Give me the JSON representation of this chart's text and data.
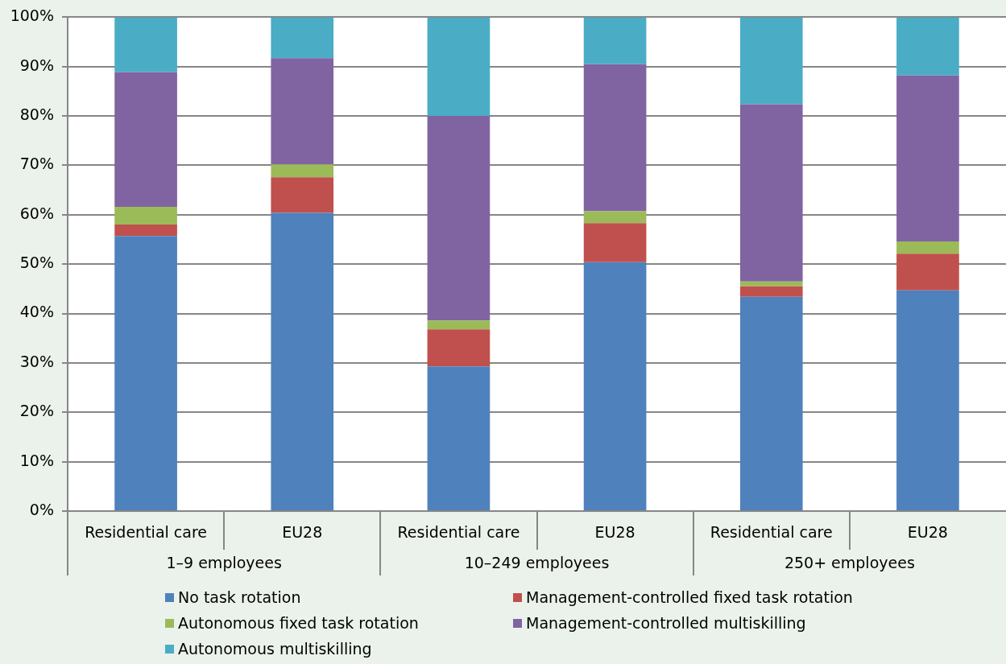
{
  "chart_data": {
    "type": "bar",
    "stacked": true,
    "categories": [
      "Residential care",
      "EU28",
      "Residential care",
      "EU28",
      "Residential care",
      "EU28"
    ],
    "annotations": [
      "1–9 employees",
      "10–249 employees",
      "250+ employees"
    ],
    "series": [
      {
        "name": "No task rotation",
        "color": "#4f81bd",
        "values": [
          55.7,
          60.4,
          29.3,
          50.4,
          43.4,
          44.7
        ]
      },
      {
        "name": "Management-controlled fixed task rotation",
        "color": "#c0504d",
        "values": [
          2.3,
          7.2,
          7.5,
          7.9,
          2.1,
          7.4
        ]
      },
      {
        "name": "Autonomous fixed task rotation",
        "color": "#9bbb59",
        "values": [
          3.6,
          2.6,
          1.8,
          2.4,
          1.0,
          2.5
        ]
      },
      {
        "name": "Management-controlled multiskilling",
        "color": "#8064a2",
        "values": [
          27.3,
          21.5,
          41.4,
          29.8,
          35.9,
          33.6
        ]
      },
      {
        "name": "Autonomous multiskilling",
        "color": "#4bacc6",
        "values": [
          11.1,
          8.3,
          20.0,
          9.5,
          17.6,
          11.8
        ]
      }
    ],
    "ylim": [
      0,
      100
    ],
    "yticks": [
      {
        "value": 0,
        "label": "0%"
      },
      {
        "value": 10,
        "label": "10%"
      },
      {
        "value": 20,
        "label": "20%"
      },
      {
        "value": 30,
        "label": "30%"
      },
      {
        "value": 40,
        "label": "40%"
      },
      {
        "value": 50,
        "label": "50%"
      },
      {
        "value": 60,
        "label": "60%"
      },
      {
        "value": 70,
        "label": "70%"
      },
      {
        "value": 80,
        "label": "80%"
      },
      {
        "value": 90,
        "label": "90%"
      },
      {
        "value": 100,
        "label": "100%"
      }
    ],
    "grid": "y",
    "legend": "bottom"
  }
}
